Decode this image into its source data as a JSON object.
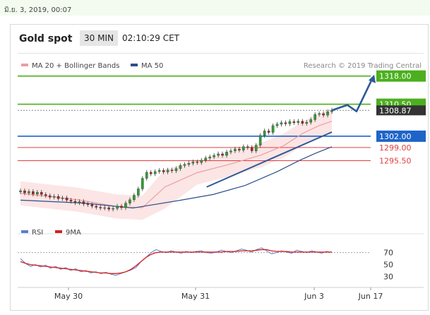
{
  "header": {
    "date_stamp": "มิ.ย. 3, 2019, 00:07",
    "title": "Gold spot",
    "timeframe": "30 MIN",
    "time": "02:10:29 CET"
  },
  "legend": {
    "ma20": "MA 20 + Bollinger Bands",
    "ma50": "MA 50",
    "credit": "Research © 2019 Trading Central",
    "rsi": "RSI",
    "rsi_ma": "9MA"
  },
  "colors": {
    "ma20": "#e8a0a0",
    "ma50": "#2d4e8c",
    "band": "#fbdede",
    "green_level": "#4caf1e",
    "blue_level": "#1e64c8",
    "red_level": "#e04040",
    "rsi": "#5a7fc8",
    "rsi_ma": "#d42020",
    "forecast": "#2d5a96",
    "candle": "#3a3a3a"
  },
  "chart_data": [
    {
      "type": "line",
      "subtype": "candlestick with MA20 + Bollinger Bands, MA50, support/resistance levels and projected path",
      "x_ticks": [
        "May 30",
        "May 31",
        "Jun 3",
        "Jun 17"
      ],
      "ylim": [
        1280,
        1320
      ],
      "levels": [
        {
          "value": 1318.0,
          "label": "1318.00",
          "kind": "resistance",
          "color": "#4caf1e"
        },
        {
          "value": 1310.5,
          "label": "1310.50",
          "kind": "resistance",
          "color": "#4caf1e"
        },
        {
          "value": 1308.87,
          "label": "1308.87",
          "kind": "last",
          "color": "#333333"
        },
        {
          "value": 1302.0,
          "label": "1302.00",
          "kind": "pivot",
          "color": "#1e64c8"
        },
        {
          "value": 1299.0,
          "label": "1299.00",
          "kind": "support",
          "color": "#e04040"
        },
        {
          "value": 1295.5,
          "label": "1295.50",
          "kind": "support",
          "color": "#e04040"
        }
      ],
      "closes": [
        1287.5,
        1286.9,
        1287.3,
        1286.6,
        1287.1,
        1286.5,
        1286.2,
        1285.8,
        1286.0,
        1285.4,
        1285.6,
        1285.0,
        1284.7,
        1284.3,
        1284.6,
        1284.0,
        1283.8,
        1283.4,
        1283.1,
        1282.9,
        1283.0,
        1282.6,
        1282.8,
        1283.4,
        1283.0,
        1284.2,
        1285.1,
        1286.3,
        1288.0,
        1290.8,
        1292.4,
        1292.0,
        1292.6,
        1292.9,
        1292.5,
        1293.0,
        1292.8,
        1293.4,
        1294.2,
        1294.5,
        1294.8,
        1295.2,
        1295.0,
        1295.6,
        1296.2,
        1296.5,
        1296.9,
        1297.3,
        1296.9,
        1297.8,
        1298.1,
        1298.6,
        1298.3,
        1299.2,
        1299.0,
        1298.1,
        1299.6,
        1302.2,
        1303.4,
        1303.0,
        1304.8,
        1305.2,
        1305.6,
        1305.3,
        1305.9,
        1305.6,
        1306.0,
        1305.4,
        1305.7,
        1306.4,
        1307.8,
        1308.0,
        1307.6,
        1308.5,
        1308.9
      ],
      "ma50_path": [
        [
          0,
          1285.0
        ],
        [
          20,
          1284.2
        ],
        [
          35,
          1282.9
        ],
        [
          50,
          1285.0
        ],
        [
          60,
          1286.5
        ],
        [
          70,
          1288.9
        ],
        [
          80,
          1292.6
        ],
        [
          87,
          1295.6
        ],
        [
          92,
          1297.5
        ],
        [
          97,
          1299.2
        ]
      ],
      "ma20_path": [
        [
          0,
          1286.8
        ],
        [
          18,
          1285.1
        ],
        [
          30,
          1283.3
        ],
        [
          38,
          1283.0
        ],
        [
          45,
          1288.5
        ],
        [
          55,
          1292.3
        ],
        [
          65,
          1294.5
        ],
        [
          75,
          1297.0
        ],
        [
          82,
          1299.5
        ],
        [
          88,
          1302.8
        ],
        [
          93,
          1304.8
        ],
        [
          97,
          1306.0
        ]
      ],
      "projection": [
        1308.87,
        1310.3,
        1308.6,
        1317.6
      ]
    },
    {
      "type": "line",
      "name": "RSI",
      "y_ticks": [
        70,
        50,
        30
      ],
      "ylim": [
        20,
        85
      ],
      "rsi": [
        60,
        52,
        47,
        50,
        46,
        49,
        44,
        47,
        42,
        45,
        40,
        43,
        38,
        40,
        36,
        38,
        35,
        37,
        34,
        32,
        35,
        38,
        41,
        45,
        55,
        62,
        70,
        75,
        72,
        70,
        73,
        71,
        69,
        72,
        70,
        72,
        73,
        70,
        69,
        71,
        74,
        72,
        70,
        73,
        76,
        74,
        71,
        75,
        78,
        73,
        68,
        70,
        73,
        71,
        69,
        74,
        72,
        70,
        73,
        71,
        69,
        72,
        70
      ],
      "rsi_ma": [
        55,
        52,
        50,
        49,
        48,
        47,
        46,
        45,
        44,
        43,
        42,
        41,
        40,
        39,
        38,
        37,
        36,
        36,
        35,
        35,
        36,
        38,
        42,
        48,
        55,
        62,
        67,
        70,
        71,
        71,
        71,
        71,
        71,
        71,
        71,
        71,
        71,
        71,
        71,
        71,
        71,
        72,
        72,
        72,
        73,
        73,
        73,
        74,
        75,
        75,
        73,
        72,
        72,
        72,
        71,
        71,
        71,
        71,
        71,
        71,
        71,
        71,
        71
      ]
    }
  ]
}
